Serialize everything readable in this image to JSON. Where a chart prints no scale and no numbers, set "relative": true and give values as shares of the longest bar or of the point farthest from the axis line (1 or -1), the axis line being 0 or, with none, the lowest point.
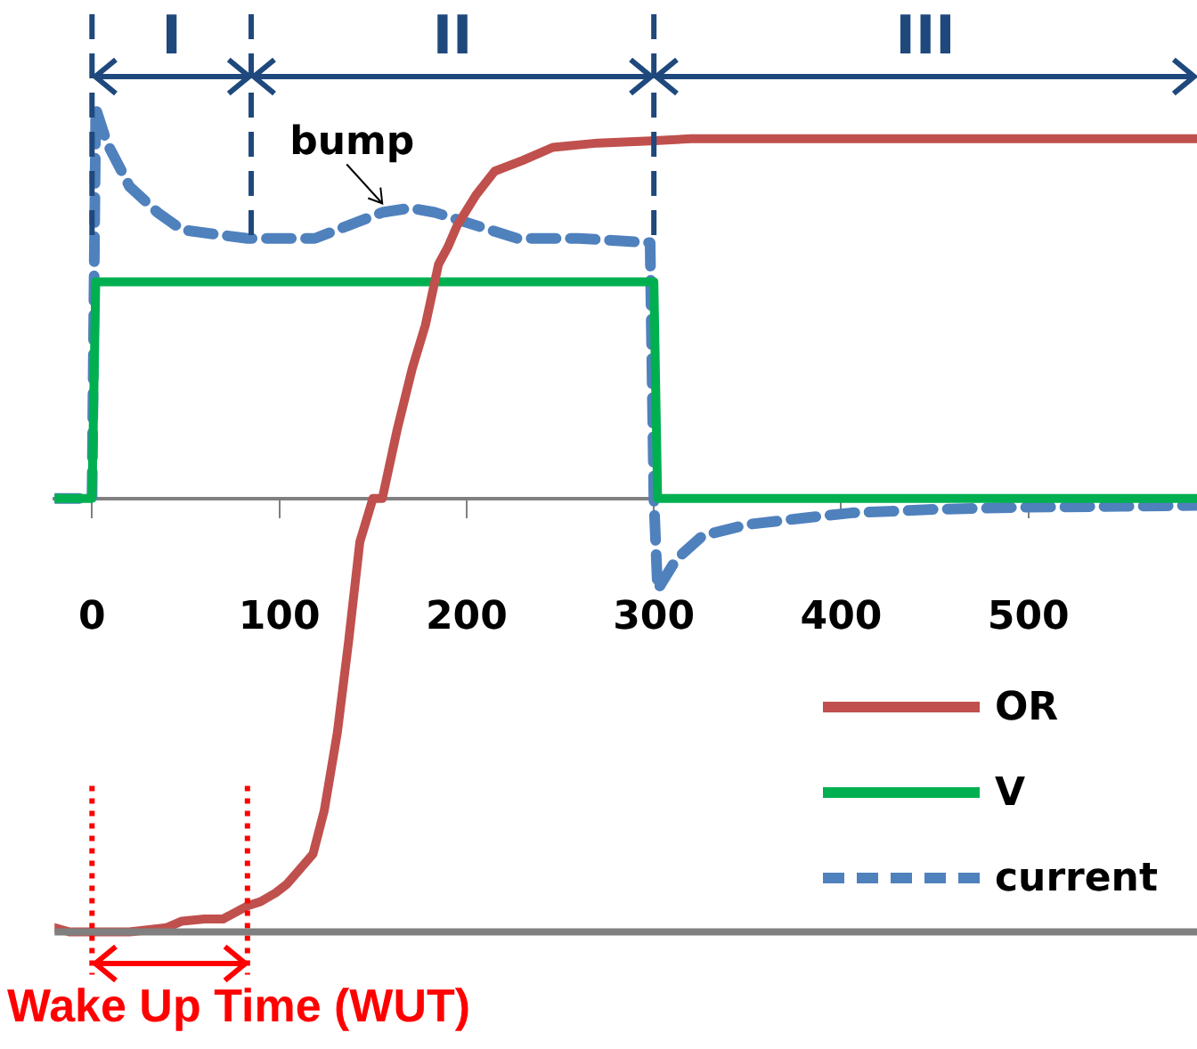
{
  "chart_data": {
    "type": "line",
    "relative": true,
    "xlim": [
      -20,
      590
    ],
    "xticks": [
      0,
      100,
      200,
      300,
      400,
      500
    ],
    "grid": false,
    "legend": "bottom right",
    "marker": "none",
    "series": [
      {
        "name": "OR",
        "color": "#c0504d",
        "x": [
          -20,
          -12,
          0,
          20,
          40,
          48,
          60,
          70,
          83,
          90,
          98,
          104,
          110,
          118,
          124,
          131,
          137,
          143,
          150,
          155,
          163,
          171,
          178,
          185,
          190,
          195,
          205,
          215,
          230,
          246,
          270,
          298,
          320,
          360,
          400,
          450,
          500,
          550,
          590
        ],
        "values": [
          -0.99,
          -1.0,
          -1.0,
          -1.0,
          -0.99,
          -0.975,
          -0.97,
          -0.97,
          -0.94,
          -0.93,
          -0.91,
          -0.89,
          -0.86,
          -0.82,
          -0.72,
          -0.54,
          -0.33,
          -0.1,
          0.0,
          0.0,
          0.16,
          0.3,
          0.4,
          0.54,
          0.58,
          0.63,
          0.7,
          0.755,
          0.78,
          0.81,
          0.82,
          0.825,
          0.83,
          0.83,
          0.83,
          0.83,
          0.83,
          0.83,
          0.83
        ]
      },
      {
        "name": "V",
        "color": "#00b050",
        "x": [
          -20,
          0,
          2,
          300,
          302,
          590
        ],
        "values": [
          0,
          0,
          0.5,
          0.5,
          0,
          0
        ]
      },
      {
        "name": "current",
        "color": "#4f81bd",
        "line_style": "dashed",
        "x": [
          -20,
          0,
          2,
          8,
          20,
          35,
          48,
          65,
          83,
          100,
          119,
          137,
          155,
          170,
          183,
          205,
          227,
          260,
          298,
          300,
          302,
          312,
          326,
          350,
          380,
          406,
          450,
          500,
          550,
          590
        ],
        "values": [
          0,
          0,
          0.9,
          0.82,
          0.72,
          0.66,
          0.62,
          0.61,
          0.6,
          0.6,
          0.6,
          0.63,
          0.66,
          0.67,
          0.66,
          0.63,
          0.6,
          0.6,
          0.59,
          0.0,
          -0.21,
          -0.14,
          -0.086,
          -0.06,
          -0.045,
          -0.033,
          -0.025,
          -0.02,
          -0.018,
          -0.016
        ]
      }
    ],
    "ref_lines": [
      {
        "axis": "x",
        "value": 0,
        "color": "#1f497d",
        "line_style": "dashed"
      },
      {
        "axis": "x",
        "value": 85,
        "color": "#1f497d",
        "line_style": "dashed"
      },
      {
        "axis": "x",
        "value": 300,
        "color": "#1f497d",
        "line_style": "dashed"
      },
      {
        "axis": "x",
        "value": 0,
        "color": "#ff0000",
        "line_style": "dotted"
      },
      {
        "axis": "x",
        "value": 83,
        "color": "#ff0000",
        "line_style": "dotted"
      },
      {
        "axis": "y",
        "value": -1,
        "color": "#808080",
        "line_style": "solid"
      }
    ],
    "annotations": [
      "I",
      "II",
      "III",
      "Wake Up Time (WUT)",
      {
        "text": "bump",
        "x": 155,
        "y": 0.66
      }
    ]
  }
}
